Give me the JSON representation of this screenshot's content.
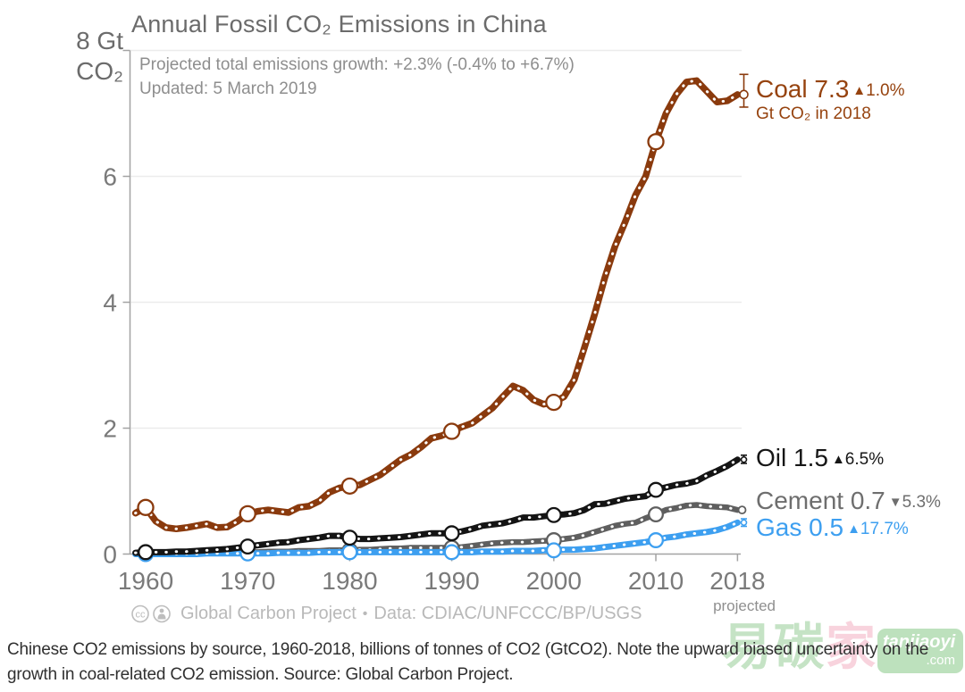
{
  "title": "Annual Fossil CO₂ Emissions in China",
  "subtitle": {
    "line1": "Projected total emissions growth: +2.3% (-0.4% to +6.7%)",
    "line2": "Updated: 5 March 2019"
  },
  "y_axis": {
    "unit_line1": "8 Gt",
    "unit_line2": "CO₂"
  },
  "x_axis": {
    "projected_label": "projected"
  },
  "chart_data": {
    "type": "line",
    "title": "Annual Fossil CO₂ Emissions in China",
    "ylabel": "Gt CO₂",
    "ylim": [
      0,
      8
    ],
    "yticks": [
      0,
      2,
      4,
      6
    ],
    "ytick_top": 8,
    "xticks": [
      1960,
      1970,
      1980,
      1990,
      2000,
      2010,
      2018
    ],
    "x_range": [
      1959,
      2018
    ],
    "x_step": 1,
    "grid": true,
    "decade_markers": [
      1960,
      1970,
      1980,
      1990,
      2000,
      2010
    ],
    "series": [
      {
        "name": "Coal",
        "color": "#8a3a0d",
        "value_2018": 7.3,
        "change_pct": "+1.0%",
        "error_bar": {
          "low": 7.1,
          "center": 7.3,
          "high": 7.62
        },
        "values": [
          0.65,
          0.74,
          0.52,
          0.42,
          0.4,
          0.42,
          0.45,
          0.48,
          0.42,
          0.43,
          0.52,
          0.64,
          0.68,
          0.7,
          0.68,
          0.66,
          0.74,
          0.76,
          0.84,
          0.98,
          1.05,
          1.08,
          1.1,
          1.18,
          1.26,
          1.38,
          1.5,
          1.58,
          1.7,
          1.84,
          1.88,
          1.95,
          2.02,
          2.08,
          2.2,
          2.32,
          2.5,
          2.67,
          2.6,
          2.45,
          2.38,
          2.41,
          2.5,
          2.77,
          3.28,
          3.81,
          4.39,
          4.89,
          5.28,
          5.7,
          6.0,
          6.55,
          7.0,
          7.3,
          7.5,
          7.52,
          7.35,
          7.18,
          7.2,
          7.3
        ]
      },
      {
        "name": "Oil",
        "color": "#141414",
        "value_2018": 1.5,
        "change_pct": "+6.5%",
        "error_bar": {
          "low": 1.44,
          "center": 1.5,
          "high": 1.57
        },
        "values": [
          0.02,
          0.03,
          0.03,
          0.03,
          0.04,
          0.04,
          0.05,
          0.06,
          0.07,
          0.08,
          0.1,
          0.12,
          0.14,
          0.16,
          0.18,
          0.19,
          0.22,
          0.24,
          0.26,
          0.29,
          0.29,
          0.26,
          0.24,
          0.24,
          0.25,
          0.26,
          0.27,
          0.29,
          0.31,
          0.33,
          0.33,
          0.33,
          0.36,
          0.4,
          0.45,
          0.47,
          0.49,
          0.53,
          0.58,
          0.58,
          0.6,
          0.62,
          0.63,
          0.65,
          0.7,
          0.79,
          0.8,
          0.84,
          0.88,
          0.9,
          0.92,
          1.02,
          1.06,
          1.1,
          1.12,
          1.16,
          1.25,
          1.32,
          1.4,
          1.5
        ]
      },
      {
        "name": "Cement",
        "color": "#5f5f5f",
        "value_2018": 0.7,
        "change_pct": "-5.3%",
        "error_bar": {
          "low": 0.7,
          "center": 0.7,
          "high": 0.7
        },
        "values": [
          0.01,
          0.01,
          0.01,
          0.01,
          0.01,
          0.01,
          0.02,
          0.02,
          0.02,
          0.02,
          0.02,
          0.03,
          0.03,
          0.04,
          0.04,
          0.04,
          0.05,
          0.05,
          0.05,
          0.06,
          0.06,
          0.06,
          0.07,
          0.07,
          0.08,
          0.09,
          0.09,
          0.1,
          0.1,
          0.1,
          0.1,
          0.1,
          0.11,
          0.13,
          0.15,
          0.17,
          0.18,
          0.19,
          0.19,
          0.2,
          0.21,
          0.22,
          0.24,
          0.26,
          0.3,
          0.35,
          0.4,
          0.45,
          0.48,
          0.5,
          0.57,
          0.63,
          0.7,
          0.73,
          0.77,
          0.78,
          0.76,
          0.75,
          0.74,
          0.7
        ]
      },
      {
        "name": "Gas",
        "color": "#3d9ff0",
        "value_2018": 0.5,
        "change_pct": "+17.7%",
        "error_bar": {
          "low": 0.44,
          "center": 0.5,
          "high": 0.56
        },
        "values": [
          0.0,
          0.0,
          0.0,
          0.0,
          0.0,
          0.0,
          0.0,
          0.01,
          0.01,
          0.01,
          0.01,
          0.01,
          0.01,
          0.01,
          0.02,
          0.02,
          0.02,
          0.02,
          0.03,
          0.03,
          0.03,
          0.03,
          0.03,
          0.03,
          0.03,
          0.03,
          0.03,
          0.03,
          0.03,
          0.03,
          0.03,
          0.03,
          0.03,
          0.03,
          0.04,
          0.04,
          0.04,
          0.05,
          0.05,
          0.05,
          0.06,
          0.06,
          0.07,
          0.07,
          0.08,
          0.09,
          0.11,
          0.13,
          0.15,
          0.17,
          0.19,
          0.22,
          0.26,
          0.28,
          0.31,
          0.33,
          0.35,
          0.38,
          0.43,
          0.5
        ]
      }
    ],
    "legend_position": "right-of-line-ends",
    "colors": {
      "grid": "#ececec",
      "axis": "#a3a3a3",
      "tick_text": "#7a7a7a",
      "marker_fill": "#ffffff"
    }
  },
  "series_labels": [
    {
      "text": "Coal 7.3",
      "arrow": "▲",
      "pct": "1.0%",
      "sub": "Gt CO₂ in 2018",
      "color": "#96430f"
    },
    {
      "text": "Oil 1.5",
      "arrow": "▲",
      "pct": "6.5%",
      "color": "#161616"
    },
    {
      "text": "Cement 0.7",
      "arrow": "▼",
      "pct": "5.3%",
      "color": "#6e6e6e"
    },
    {
      "text": "Gas 0.5",
      "arrow": "▲",
      "pct": "17.7%",
      "color": "#3d9ff0"
    }
  ],
  "footer": {
    "icon_cc_text": "cc",
    "org": "Global Carbon Project",
    "separator": "•",
    "data_text": "Data: CDIAC/UNFCCC/BP/USGS"
  },
  "caption": {
    "line1": "Chinese CO2 emissions by source, 1960-2018, billions of tonnes of CO2 (GtCO2). Note the upward biased uncertainty on the",
    "line2": "growth in coal-related CO2 emission. Source: Global Carbon Project."
  },
  "watermark": {
    "char1": "易",
    "char2": "碳",
    "char3": "家",
    "box_line1": "tanjiaoyi",
    "box_line2": ".com",
    "green": "#8cc98c",
    "pink": "#f2a8bc",
    "box_green": "#7ec57e"
  }
}
